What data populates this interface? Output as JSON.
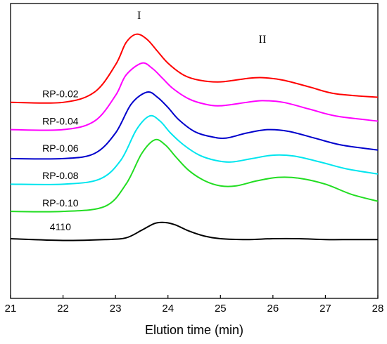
{
  "chart_data": {
    "type": "line",
    "title": "",
    "xlabel": "Elution time (min)",
    "ylabel": "",
    "xlim": [
      21,
      28
    ],
    "xticks": [
      21,
      22,
      23,
      24,
      25,
      26,
      27,
      28
    ],
    "grid": false,
    "legend": "inline-labels-left",
    "annotations": [
      {
        "text": "I",
        "x": 23.45,
        "y": 11.9
      },
      {
        "text": "II",
        "x": 25.8,
        "y": 10.5
      }
    ],
    "series": [
      {
        "name": "RP-0.02",
        "color": "#ff0000",
        "label_at": [
          21.95,
          7.3
        ],
        "x": [
          21.0,
          22.0,
          22.6,
          23.0,
          23.2,
          23.4,
          23.6,
          23.8,
          24.0,
          24.3,
          24.6,
          25.0,
          25.5,
          25.8,
          26.2,
          26.7,
          27.2,
          28.0
        ],
        "y": [
          7.0,
          7.0,
          7.6,
          9.2,
          10.5,
          11.0,
          10.7,
          10.0,
          9.3,
          8.6,
          8.3,
          8.2,
          8.4,
          8.45,
          8.3,
          7.9,
          7.5,
          7.3
        ]
      },
      {
        "name": "RP-0.04",
        "color": "#ff00ff",
        "label_at": [
          21.95,
          5.7
        ],
        "x": [
          21.0,
          22.0,
          22.6,
          23.0,
          23.2,
          23.5,
          23.7,
          23.9,
          24.1,
          24.4,
          24.7,
          25.0,
          25.5,
          25.8,
          26.2,
          26.7,
          27.2,
          28.0
        ],
        "y": [
          5.4,
          5.4,
          5.9,
          7.4,
          8.6,
          9.3,
          9.0,
          8.4,
          7.8,
          7.2,
          6.9,
          6.8,
          7.0,
          7.1,
          7.0,
          6.6,
          6.2,
          5.9
        ]
      },
      {
        "name": "RP-0.06",
        "color": "#0000cc",
        "label_at": [
          21.95,
          4.1
        ],
        "x": [
          21.0,
          22.0,
          22.6,
          23.0,
          23.3,
          23.6,
          23.8,
          24.0,
          24.2,
          24.5,
          24.8,
          25.1,
          25.5,
          25.9,
          26.3,
          26.8,
          27.3,
          28.0
        ],
        "y": [
          3.7,
          3.7,
          4.0,
          5.2,
          6.9,
          7.6,
          7.3,
          6.7,
          6.0,
          5.3,
          5.0,
          4.9,
          5.2,
          5.4,
          5.3,
          4.9,
          4.5,
          4.2
        ]
      },
      {
        "name": "RP-0.08",
        "color": "#00e5ee",
        "label_at": [
          21.95,
          2.5
        ],
        "x": [
          21.0,
          22.0,
          22.7,
          23.1,
          23.4,
          23.65,
          23.85,
          24.05,
          24.3,
          24.6,
          24.9,
          25.2,
          25.6,
          26.0,
          26.4,
          26.9,
          27.4,
          28.0
        ],
        "y": [
          2.2,
          2.2,
          2.5,
          3.6,
          5.4,
          6.2,
          5.9,
          5.2,
          4.5,
          3.9,
          3.6,
          3.5,
          3.7,
          3.9,
          3.85,
          3.5,
          3.1,
          2.8
        ]
      },
      {
        "name": "RP-0.10",
        "color": "#22dd22",
        "label_at": [
          21.95,
          0.9
        ],
        "x": [
          21.0,
          22.0,
          22.8,
          23.2,
          23.5,
          23.75,
          23.95,
          24.15,
          24.4,
          24.7,
          25.0,
          25.3,
          25.7,
          26.1,
          26.5,
          27.0,
          27.5,
          28.0
        ],
        "y": [
          0.6,
          0.6,
          0.9,
          2.2,
          4.0,
          4.8,
          4.5,
          3.8,
          3.0,
          2.4,
          2.1,
          2.1,
          2.4,
          2.6,
          2.55,
          2.2,
          1.6,
          1.2
        ]
      },
      {
        "name": "4110",
        "color": "#000000",
        "label_at": [
          21.95,
          -0.5
        ],
        "x": [
          21.0,
          22.0,
          22.8,
          23.2,
          23.5,
          23.75,
          23.95,
          24.15,
          24.4,
          24.7,
          25.0,
          25.5,
          26.0,
          26.5,
          27.0,
          27.5,
          28.0
        ],
        "y": [
          -1.0,
          -1.1,
          -1.05,
          -0.95,
          -0.5,
          -0.1,
          -0.05,
          -0.2,
          -0.55,
          -0.85,
          -1.0,
          -1.05,
          -1.0,
          -1.0,
          -1.05,
          -1.05,
          -1.05
        ]
      }
    ]
  }
}
